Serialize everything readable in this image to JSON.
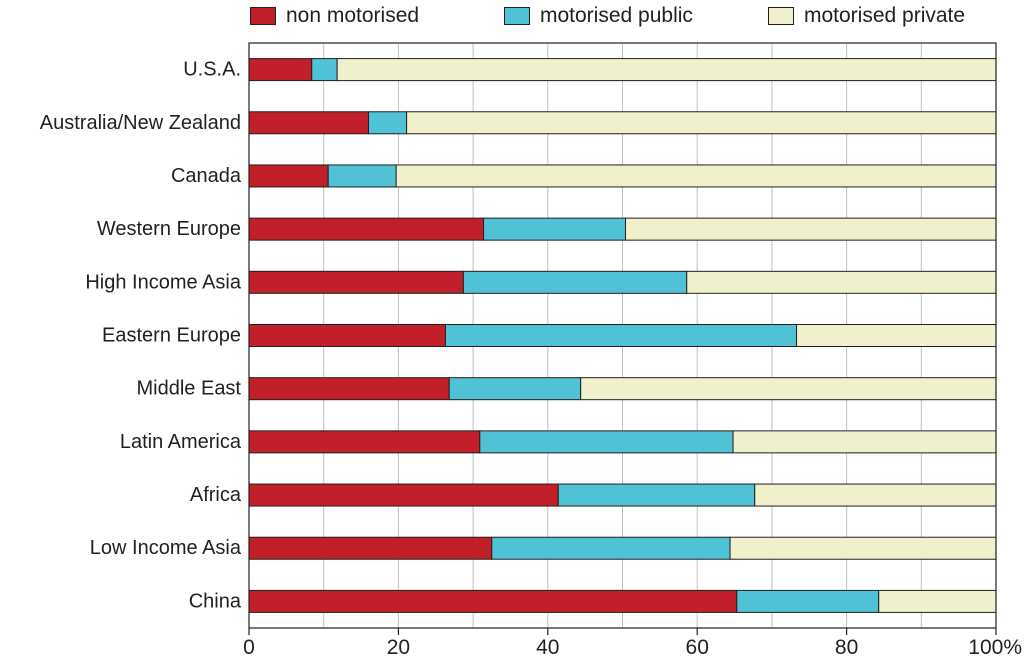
{
  "chart_data": {
    "type": "bar",
    "orientation": "horizontal",
    "stacked": true,
    "categories": [
      "U.S.A.",
      "Australia/New Zealand",
      "Canada",
      "Western Europe",
      "High Income Asia",
      "Eastern Europe",
      "Middle East",
      "Latin America",
      "Africa",
      "Low Income Asia",
      "China"
    ],
    "series": [
      {
        "name": "non motorised",
        "color": "#c1202a",
        "values": [
          8.4,
          16.0,
          10.6,
          31.4,
          28.7,
          26.3,
          26.8,
          30.9,
          41.4,
          32.5,
          65.3
        ]
      },
      {
        "name": "motorised public",
        "color": "#4fc3d5",
        "values": [
          3.4,
          5.1,
          9.1,
          19.0,
          29.9,
          47.0,
          17.6,
          33.9,
          26.3,
          31.9,
          19.0
        ]
      },
      {
        "name": "motorised private",
        "color": "#f0f1cc",
        "values": [
          88.2,
          78.9,
          80.3,
          49.6,
          41.4,
          26.7,
          55.6,
          35.2,
          32.3,
          35.6,
          15.7
        ]
      }
    ],
    "x_ticks": [
      "0",
      "20",
      "40",
      "60",
      "80",
      "100%"
    ],
    "xlim": [
      0,
      100
    ],
    "grid": true,
    "legend_position": "top"
  }
}
